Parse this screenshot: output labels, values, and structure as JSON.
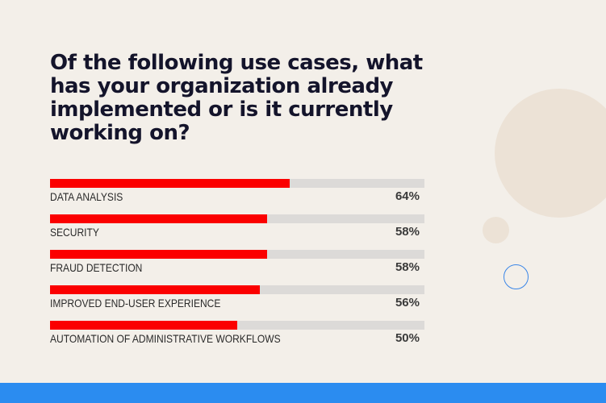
{
  "title": "Of the following use cases, what has your organization already implemented or is it currently working on?",
  "colors": {
    "bar": "#fb0000",
    "track": "#dcdad8",
    "accent": "#2b8cf0",
    "background": "#f3efe9"
  },
  "chart_data": {
    "type": "bar",
    "orientation": "horizontal",
    "title": "Of the following use cases, what has your organization already implemented or is it currently working on?",
    "xlim": [
      0,
      100
    ],
    "categories": [
      "DATA ANALYSIS",
      "SECURITY",
      "FRAUD DETECTION",
      "IMPROVED END-USER EXPERIENCE",
      "AUTOMATION OF ADMINISTRATIVE WORKFLOWS"
    ],
    "values": [
      64,
      58,
      58,
      56,
      50
    ],
    "value_labels": [
      "64%",
      "58%",
      "58%",
      "56%",
      "50%"
    ],
    "grid": false,
    "legend": "none"
  }
}
